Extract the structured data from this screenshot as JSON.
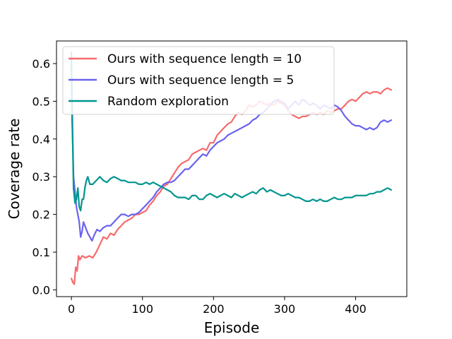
{
  "chart_data": {
    "type": "line",
    "xlabel": "Episode",
    "ylabel": "Coverage rate",
    "xlim": [
      -21,
      472
    ],
    "ylim": [
      -0.018,
      0.66
    ],
    "xticks": [
      0,
      100,
      200,
      300,
      400
    ],
    "yticks": [
      0.0,
      0.1,
      0.2,
      0.3,
      0.4,
      0.5,
      0.6
    ],
    "ytick_labels": [
      "0.0",
      "0.1",
      "0.2",
      "0.3",
      "0.4",
      "0.5",
      "0.6"
    ],
    "grid": false,
    "legend_position": "top-left",
    "series": [
      {
        "name": "Ours with sequence length = 10",
        "color": "#f86a6a",
        "points": [
          [
            0,
            0.03
          ],
          [
            2,
            0.02
          ],
          [
            4,
            0.015
          ],
          [
            6,
            0.06
          ],
          [
            8,
            0.05
          ],
          [
            10,
            0.09
          ],
          [
            12,
            0.08
          ],
          [
            15,
            0.09
          ],
          [
            20,
            0.085
          ],
          [
            25,
            0.09
          ],
          [
            30,
            0.085
          ],
          [
            35,
            0.1
          ],
          [
            40,
            0.12
          ],
          [
            45,
            0.14
          ],
          [
            50,
            0.135
          ],
          [
            55,
            0.15
          ],
          [
            60,
            0.145
          ],
          [
            65,
            0.16
          ],
          [
            70,
            0.17
          ],
          [
            75,
            0.18
          ],
          [
            80,
            0.185
          ],
          [
            85,
            0.19
          ],
          [
            90,
            0.2
          ],
          [
            95,
            0.2
          ],
          [
            100,
            0.205
          ],
          [
            105,
            0.21
          ],
          [
            110,
            0.225
          ],
          [
            115,
            0.235
          ],
          [
            120,
            0.25
          ],
          [
            125,
            0.26
          ],
          [
            130,
            0.275
          ],
          [
            135,
            0.28
          ],
          [
            140,
            0.295
          ],
          [
            145,
            0.31
          ],
          [
            150,
            0.325
          ],
          [
            155,
            0.335
          ],
          [
            160,
            0.34
          ],
          [
            165,
            0.345
          ],
          [
            170,
            0.36
          ],
          [
            175,
            0.365
          ],
          [
            180,
            0.37
          ],
          [
            185,
            0.375
          ],
          [
            190,
            0.37
          ],
          [
            195,
            0.39
          ],
          [
            200,
            0.39
          ],
          [
            205,
            0.41
          ],
          [
            210,
            0.42
          ],
          [
            215,
            0.43
          ],
          [
            220,
            0.44
          ],
          [
            225,
            0.445
          ],
          [
            230,
            0.46
          ],
          [
            235,
            0.47
          ],
          [
            240,
            0.465
          ],
          [
            245,
            0.475
          ],
          [
            250,
            0.49
          ],
          [
            255,
            0.485
          ],
          [
            260,
            0.49
          ],
          [
            265,
            0.5
          ],
          [
            270,
            0.495
          ],
          [
            275,
            0.49
          ],
          [
            280,
            0.495
          ],
          [
            285,
            0.49
          ],
          [
            290,
            0.5
          ],
          [
            295,
            0.495
          ],
          [
            300,
            0.49
          ],
          [
            305,
            0.475
          ],
          [
            310,
            0.465
          ],
          [
            315,
            0.46
          ],
          [
            320,
            0.455
          ],
          [
            325,
            0.46
          ],
          [
            330,
            0.46
          ],
          [
            335,
            0.465
          ],
          [
            340,
            0.47
          ],
          [
            345,
            0.465
          ],
          [
            350,
            0.47
          ],
          [
            355,
            0.465
          ],
          [
            360,
            0.475
          ],
          [
            365,
            0.47
          ],
          [
            370,
            0.475
          ],
          [
            375,
            0.48
          ],
          [
            380,
            0.48
          ],
          [
            385,
            0.49
          ],
          [
            390,
            0.5
          ],
          [
            395,
            0.505
          ],
          [
            400,
            0.5
          ],
          [
            405,
            0.51
          ],
          [
            410,
            0.52
          ],
          [
            415,
            0.525
          ],
          [
            420,
            0.52
          ],
          [
            425,
            0.525
          ],
          [
            430,
            0.525
          ],
          [
            435,
            0.52
          ],
          [
            440,
            0.53
          ],
          [
            445,
            0.535
          ],
          [
            450,
            0.53
          ]
        ]
      },
      {
        "name": "Ours with sequence length = 5",
        "color": "#6a62f0",
        "points": [
          [
            0,
            0.61
          ],
          [
            1,
            0.5
          ],
          [
            2,
            0.38
          ],
          [
            3,
            0.3
          ],
          [
            5,
            0.26
          ],
          [
            7,
            0.22
          ],
          [
            9,
            0.2
          ],
          [
            11,
            0.18
          ],
          [
            13,
            0.14
          ],
          [
            15,
            0.155
          ],
          [
            17,
            0.18
          ],
          [
            20,
            0.165
          ],
          [
            23,
            0.15
          ],
          [
            26,
            0.14
          ],
          [
            29,
            0.13
          ],
          [
            32,
            0.145
          ],
          [
            36,
            0.16
          ],
          [
            40,
            0.155
          ],
          [
            45,
            0.165
          ],
          [
            50,
            0.17
          ],
          [
            55,
            0.17
          ],
          [
            60,
            0.18
          ],
          [
            65,
            0.19
          ],
          [
            70,
            0.2
          ],
          [
            75,
            0.2
          ],
          [
            80,
            0.195
          ],
          [
            85,
            0.2
          ],
          [
            90,
            0.2
          ],
          [
            95,
            0.205
          ],
          [
            100,
            0.215
          ],
          [
            105,
            0.225
          ],
          [
            110,
            0.235
          ],
          [
            115,
            0.245
          ],
          [
            120,
            0.26
          ],
          [
            125,
            0.27
          ],
          [
            130,
            0.28
          ],
          [
            135,
            0.285
          ],
          [
            140,
            0.285
          ],
          [
            145,
            0.29
          ],
          [
            150,
            0.3
          ],
          [
            155,
            0.31
          ],
          [
            160,
            0.32
          ],
          [
            165,
            0.32
          ],
          [
            170,
            0.33
          ],
          [
            175,
            0.34
          ],
          [
            180,
            0.35
          ],
          [
            185,
            0.36
          ],
          [
            190,
            0.355
          ],
          [
            195,
            0.37
          ],
          [
            200,
            0.38
          ],
          [
            205,
            0.39
          ],
          [
            210,
            0.395
          ],
          [
            215,
            0.4
          ],
          [
            220,
            0.41
          ],
          [
            225,
            0.415
          ],
          [
            230,
            0.42
          ],
          [
            235,
            0.425
          ],
          [
            240,
            0.43
          ],
          [
            245,
            0.435
          ],
          [
            250,
            0.44
          ],
          [
            255,
            0.45
          ],
          [
            260,
            0.455
          ],
          [
            265,
            0.465
          ],
          [
            270,
            0.47
          ],
          [
            275,
            0.48
          ],
          [
            280,
            0.49
          ],
          [
            285,
            0.5
          ],
          [
            290,
            0.505
          ],
          [
            295,
            0.5
          ],
          [
            300,
            0.495
          ],
          [
            305,
            0.48
          ],
          [
            310,
            0.49
          ],
          [
            315,
            0.5
          ],
          [
            320,
            0.49
          ],
          [
            325,
            0.505
          ],
          [
            330,
            0.5
          ],
          [
            335,
            0.49
          ],
          [
            340,
            0.495
          ],
          [
            345,
            0.49
          ],
          [
            350,
            0.48
          ],
          [
            355,
            0.49
          ],
          [
            360,
            0.485
          ],
          [
            365,
            0.48
          ],
          [
            370,
            0.49
          ],
          [
            375,
            0.485
          ],
          [
            380,
            0.475
          ],
          [
            385,
            0.46
          ],
          [
            390,
            0.45
          ],
          [
            395,
            0.44
          ],
          [
            400,
            0.435
          ],
          [
            405,
            0.435
          ],
          [
            410,
            0.43
          ],
          [
            415,
            0.425
          ],
          [
            420,
            0.43
          ],
          [
            425,
            0.425
          ],
          [
            430,
            0.43
          ],
          [
            435,
            0.445
          ],
          [
            440,
            0.45
          ],
          [
            445,
            0.445
          ],
          [
            450,
            0.45
          ]
        ]
      },
      {
        "name": "Random exploration",
        "color": "#00968f",
        "points": [
          [
            0,
            0.63
          ],
          [
            1,
            0.45
          ],
          [
            2,
            0.38
          ],
          [
            3,
            0.27
          ],
          [
            5,
            0.23
          ],
          [
            7,
            0.24
          ],
          [
            9,
            0.27
          ],
          [
            11,
            0.22
          ],
          [
            13,
            0.21
          ],
          [
            15,
            0.24
          ],
          [
            17,
            0.24
          ],
          [
            19,
            0.27
          ],
          [
            21,
            0.29
          ],
          [
            23,
            0.3
          ],
          [
            26,
            0.28
          ],
          [
            30,
            0.28
          ],
          [
            35,
            0.29
          ],
          [
            40,
            0.3
          ],
          [
            45,
            0.29
          ],
          [
            50,
            0.285
          ],
          [
            55,
            0.295
          ],
          [
            60,
            0.3
          ],
          [
            65,
            0.295
          ],
          [
            70,
            0.29
          ],
          [
            75,
            0.29
          ],
          [
            80,
            0.285
          ],
          [
            85,
            0.285
          ],
          [
            90,
            0.285
          ],
          [
            95,
            0.28
          ],
          [
            100,
            0.28
          ],
          [
            105,
            0.285
          ],
          [
            110,
            0.28
          ],
          [
            115,
            0.285
          ],
          [
            120,
            0.28
          ],
          [
            125,
            0.275
          ],
          [
            130,
            0.27
          ],
          [
            135,
            0.265
          ],
          [
            140,
            0.26
          ],
          [
            145,
            0.25
          ],
          [
            150,
            0.245
          ],
          [
            155,
            0.245
          ],
          [
            160,
            0.245
          ],
          [
            165,
            0.24
          ],
          [
            170,
            0.25
          ],
          [
            175,
            0.25
          ],
          [
            180,
            0.24
          ],
          [
            185,
            0.24
          ],
          [
            190,
            0.25
          ],
          [
            195,
            0.255
          ],
          [
            200,
            0.25
          ],
          [
            205,
            0.245
          ],
          [
            210,
            0.25
          ],
          [
            215,
            0.255
          ],
          [
            220,
            0.25
          ],
          [
            225,
            0.245
          ],
          [
            230,
            0.255
          ],
          [
            235,
            0.25
          ],
          [
            240,
            0.245
          ],
          [
            245,
            0.25
          ],
          [
            250,
            0.255
          ],
          [
            255,
            0.26
          ],
          [
            260,
            0.255
          ],
          [
            265,
            0.265
          ],
          [
            270,
            0.27
          ],
          [
            275,
            0.26
          ],
          [
            280,
            0.265
          ],
          [
            285,
            0.26
          ],
          [
            290,
            0.255
          ],
          [
            295,
            0.25
          ],
          [
            300,
            0.25
          ],
          [
            305,
            0.255
          ],
          [
            310,
            0.25
          ],
          [
            315,
            0.245
          ],
          [
            320,
            0.245
          ],
          [
            325,
            0.24
          ],
          [
            330,
            0.235
          ],
          [
            335,
            0.235
          ],
          [
            340,
            0.24
          ],
          [
            345,
            0.235
          ],
          [
            350,
            0.24
          ],
          [
            355,
            0.235
          ],
          [
            360,
            0.235
          ],
          [
            365,
            0.24
          ],
          [
            370,
            0.245
          ],
          [
            375,
            0.24
          ],
          [
            380,
            0.24
          ],
          [
            385,
            0.245
          ],
          [
            390,
            0.245
          ],
          [
            395,
            0.245
          ],
          [
            400,
            0.25
          ],
          [
            405,
            0.25
          ],
          [
            410,
            0.25
          ],
          [
            415,
            0.25
          ],
          [
            420,
            0.255
          ],
          [
            425,
            0.255
          ],
          [
            430,
            0.26
          ],
          [
            435,
            0.26
          ],
          [
            440,
            0.265
          ],
          [
            445,
            0.27
          ],
          [
            450,
            0.265
          ]
        ]
      }
    ]
  }
}
